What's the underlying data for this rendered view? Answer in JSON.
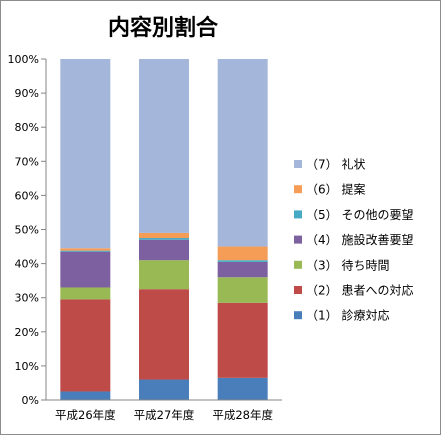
{
  "chart_data": {
    "type": "bar",
    "stacked": true,
    "title": "内容別割合",
    "xlabel": "",
    "ylabel": "",
    "ylim": [
      0,
      100
    ],
    "y_tick_labels": [
      "0%",
      "10%",
      "20%",
      "30%",
      "40%",
      "50%",
      "60%",
      "70%",
      "80%",
      "90%",
      "100%"
    ],
    "categories": [
      "平成26年度",
      "平成27年度",
      "平成28年度"
    ],
    "legend_position": "right",
    "grid": false,
    "series": [
      {
        "name": "（1） 診療対応",
        "color": "#4a7ebb",
        "values": [
          2.5,
          6.0,
          6.5
        ]
      },
      {
        "name": "（2） 患者への対応",
        "color": "#be4b48",
        "values": [
          27.0,
          26.5,
          22.0
        ]
      },
      {
        "name": "（3） 待ち時間",
        "color": "#98b954",
        "values": [
          3.5,
          8.5,
          7.5
        ]
      },
      {
        "name": "（4） 施設改善要望",
        "color": "#7d60a0",
        "values": [
          10.5,
          6.0,
          4.5
        ]
      },
      {
        "name": "（5） その他の要望",
        "color": "#46aac4",
        "values": [
          0.3,
          0.5,
          0.5
        ]
      },
      {
        "name": "（6） 提案",
        "color": "#f59d56",
        "values": [
          0.7,
          1.5,
          4.0
        ]
      },
      {
        "name": "（7） 礼状",
        "color": "#a5b6db",
        "values": [
          55.5,
          51.0,
          55.0
        ]
      }
    ]
  }
}
